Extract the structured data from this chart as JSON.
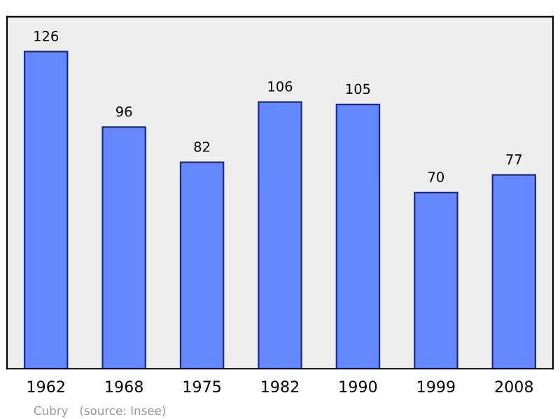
{
  "chart_data": {
    "type": "bar",
    "categories": [
      "1962",
      "1968",
      "1975",
      "1982",
      "1990",
      "1999",
      "2008"
    ],
    "values": [
      126,
      96,
      82,
      106,
      105,
      70,
      77
    ],
    "color": "#6688ff",
    "data_labels": true,
    "grid": false,
    "annotations": [
      "Cubry   (source: Insee)"
    ]
  }
}
